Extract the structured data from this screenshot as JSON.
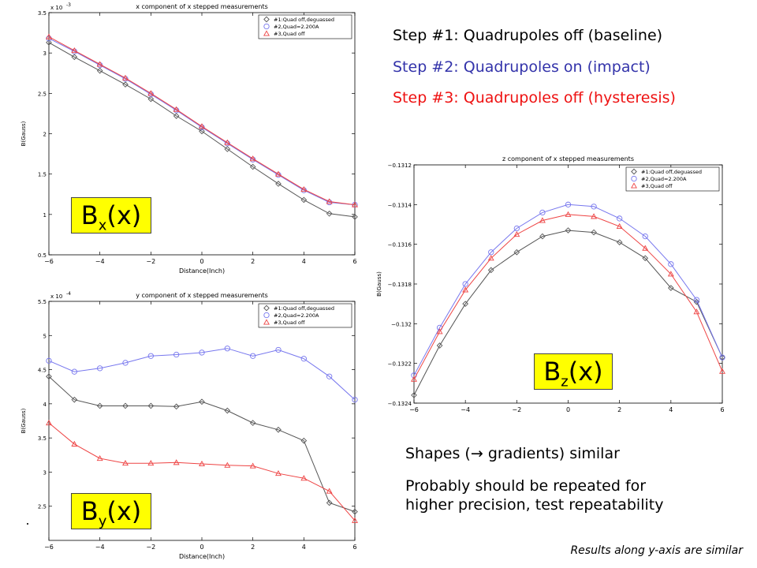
{
  "steps": {
    "s1": {
      "text": "Step #1: Quadrupoles off (baseline)",
      "color": "#000000"
    },
    "s2": {
      "text": "Step #2: Quadrupoles on (impact)",
      "color": "#3333aa"
    },
    "s3": {
      "text": "Step #3: Quadrupoles off (hysteresis)",
      "color": "#ee1111"
    }
  },
  "notes": {
    "shapes_prefix": "Shapes (",
    "arrow": "→",
    "shapes_suffix": " gradients) similar",
    "repeat_line1": "Probably should be repeated for",
    "repeat_line2": "higher precision, test repeatability",
    "footer": "Results along y-axis are similar"
  },
  "labels": {
    "bx": {
      "main": "B",
      "sub": "x",
      "tail": "(x)"
    },
    "by": {
      "main": "B",
      "sub": "y",
      "tail": "(x)"
    },
    "bz": {
      "main": "B",
      "sub": "z",
      "tail": "(x)"
    }
  },
  "colors": {
    "series1": "#555555",
    "series2": "#7777ee",
    "series3": "#ee4444",
    "highlight": "#ffff00"
  },
  "chart_data": [
    {
      "id": "bx",
      "type": "line",
      "title": "x component of x stepped measurements",
      "xlabel": "Distance(Inch)",
      "ylabel": "B(Gauss)",
      "exponent": "x 10",
      "exponent_power": "-3",
      "xlim": [
        -6,
        6
      ],
      "ylim": [
        0.5,
        3.5
      ],
      "xticks": [
        -6,
        -4,
        -2,
        0,
        2,
        4,
        6
      ],
      "yticks": [
        0.5,
        1,
        1.5,
        2,
        2.5,
        3,
        3.5
      ],
      "ytick_labels": [
        "0.5",
        "1",
        "1.5",
        "2",
        "2.5",
        "3",
        "3.5"
      ],
      "legend_position": "top-right",
      "x": [
        -6,
        -5,
        -4,
        -3,
        -2,
        -1,
        0,
        1,
        2,
        3,
        4,
        5,
        6
      ],
      "series": [
        {
          "name": "#1:Quad off,deguassed",
          "marker": "diamond",
          "values": [
            3.13,
            2.95,
            2.78,
            2.61,
            2.43,
            2.22,
            2.03,
            1.81,
            1.59,
            1.38,
            1.18,
            1.01,
            0.97
          ]
        },
        {
          "name": "#2,Quad=2.200A",
          "marker": "circle",
          "values": [
            3.18,
            3.02,
            2.85,
            2.68,
            2.49,
            2.29,
            2.08,
            1.88,
            1.68,
            1.49,
            1.3,
            1.15,
            1.12
          ]
        },
        {
          "name": "#3,Quad off",
          "marker": "triangle",
          "values": [
            3.2,
            3.03,
            2.86,
            2.69,
            2.5,
            2.3,
            2.09,
            1.89,
            1.69,
            1.5,
            1.31,
            1.16,
            1.12
          ]
        }
      ]
    },
    {
      "id": "by",
      "type": "line",
      "title": "y component of x stepped measurements",
      "xlabel": "Distance(Inch)",
      "ylabel": "B(Gauss)",
      "exponent": "x 10",
      "exponent_power": "-4",
      "xlim": [
        -6,
        6
      ],
      "ylim": [
        2,
        5.5
      ],
      "xticks": [
        -6,
        -4,
        -2,
        0,
        2,
        4,
        6
      ],
      "yticks": [
        2.5,
        3,
        3.5,
        4,
        4.5,
        5,
        5.5
      ],
      "ytick_labels": [
        "2.5",
        "3",
        "3.5",
        "4",
        "4.5",
        "5",
        "5.5"
      ],
      "legend_position": "top-right",
      "x": [
        -6,
        -5,
        -4,
        -3,
        -2,
        -1,
        0,
        1,
        2,
        3,
        4,
        5,
        6
      ],
      "series": [
        {
          "name": "#1:Quad off,deguassed",
          "marker": "diamond",
          "values": [
            4.4,
            4.06,
            3.97,
            3.97,
            3.97,
            3.96,
            4.03,
            3.9,
            3.72,
            3.62,
            3.46,
            2.55,
            2.42
          ]
        },
        {
          "name": "#2,Quad=2.200A",
          "marker": "circle",
          "values": [
            4.63,
            4.47,
            4.52,
            4.6,
            4.7,
            4.72,
            4.75,
            4.81,
            4.7,
            4.79,
            4.66,
            4.4,
            4.06
          ]
        },
        {
          "name": "#3,Quad off",
          "marker": "triangle",
          "values": [
            3.72,
            3.41,
            3.2,
            3.13,
            3.13,
            3.14,
            3.12,
            3.1,
            3.09,
            2.98,
            2.91,
            2.72,
            2.29
          ]
        }
      ]
    },
    {
      "id": "bz",
      "type": "line",
      "title": "z component of x stepped measurements",
      "xlabel": "",
      "ylabel": "B(Gauss)",
      "xlim": [
        -6,
        6
      ],
      "ylim": [
        -0.1324,
        -0.1312
      ],
      "xticks": [
        -6,
        -4,
        -2,
        0,
        2,
        4,
        6
      ],
      "yticks": [
        -0.1324,
        -0.1322,
        -0.132,
        -0.1318,
        -0.1316,
        -0.1314,
        -0.1312
      ],
      "ytick_labels": [
        "−0.1324",
        "−0.1322",
        "−0.132",
        "−0.1318",
        "−0.1316",
        "−0.1314",
        "−0.1312"
      ],
      "legend_position": "top-right",
      "x": [
        -6,
        -5,
        -4,
        -3,
        -2,
        -1,
        0,
        1,
        2,
        3,
        4,
        5,
        6
      ],
      "series": [
        {
          "name": "#1:Quad off,deguassed",
          "marker": "diamond",
          "values": [
            -0.13236,
            -0.13211,
            -0.1319,
            -0.13173,
            -0.13164,
            -0.13156,
            -0.13153,
            -0.13154,
            -0.13159,
            -0.13167,
            -0.13182,
            -0.13189,
            -0.13217
          ]
        },
        {
          "name": "#2,Quad=2.200A",
          "marker": "circle",
          "values": [
            -0.13226,
            -0.13202,
            -0.1318,
            -0.13164,
            -0.13152,
            -0.13144,
            -0.1314,
            -0.13141,
            -0.13147,
            -0.13156,
            -0.1317,
            -0.13188,
            -0.13217
          ]
        },
        {
          "name": "#3,Quad off",
          "marker": "triangle",
          "values": [
            -0.13228,
            -0.13204,
            -0.13183,
            -0.13167,
            -0.13155,
            -0.13148,
            -0.13145,
            -0.13146,
            -0.13151,
            -0.13162,
            -0.13175,
            -0.13194,
            -0.13224
          ]
        }
      ]
    }
  ]
}
